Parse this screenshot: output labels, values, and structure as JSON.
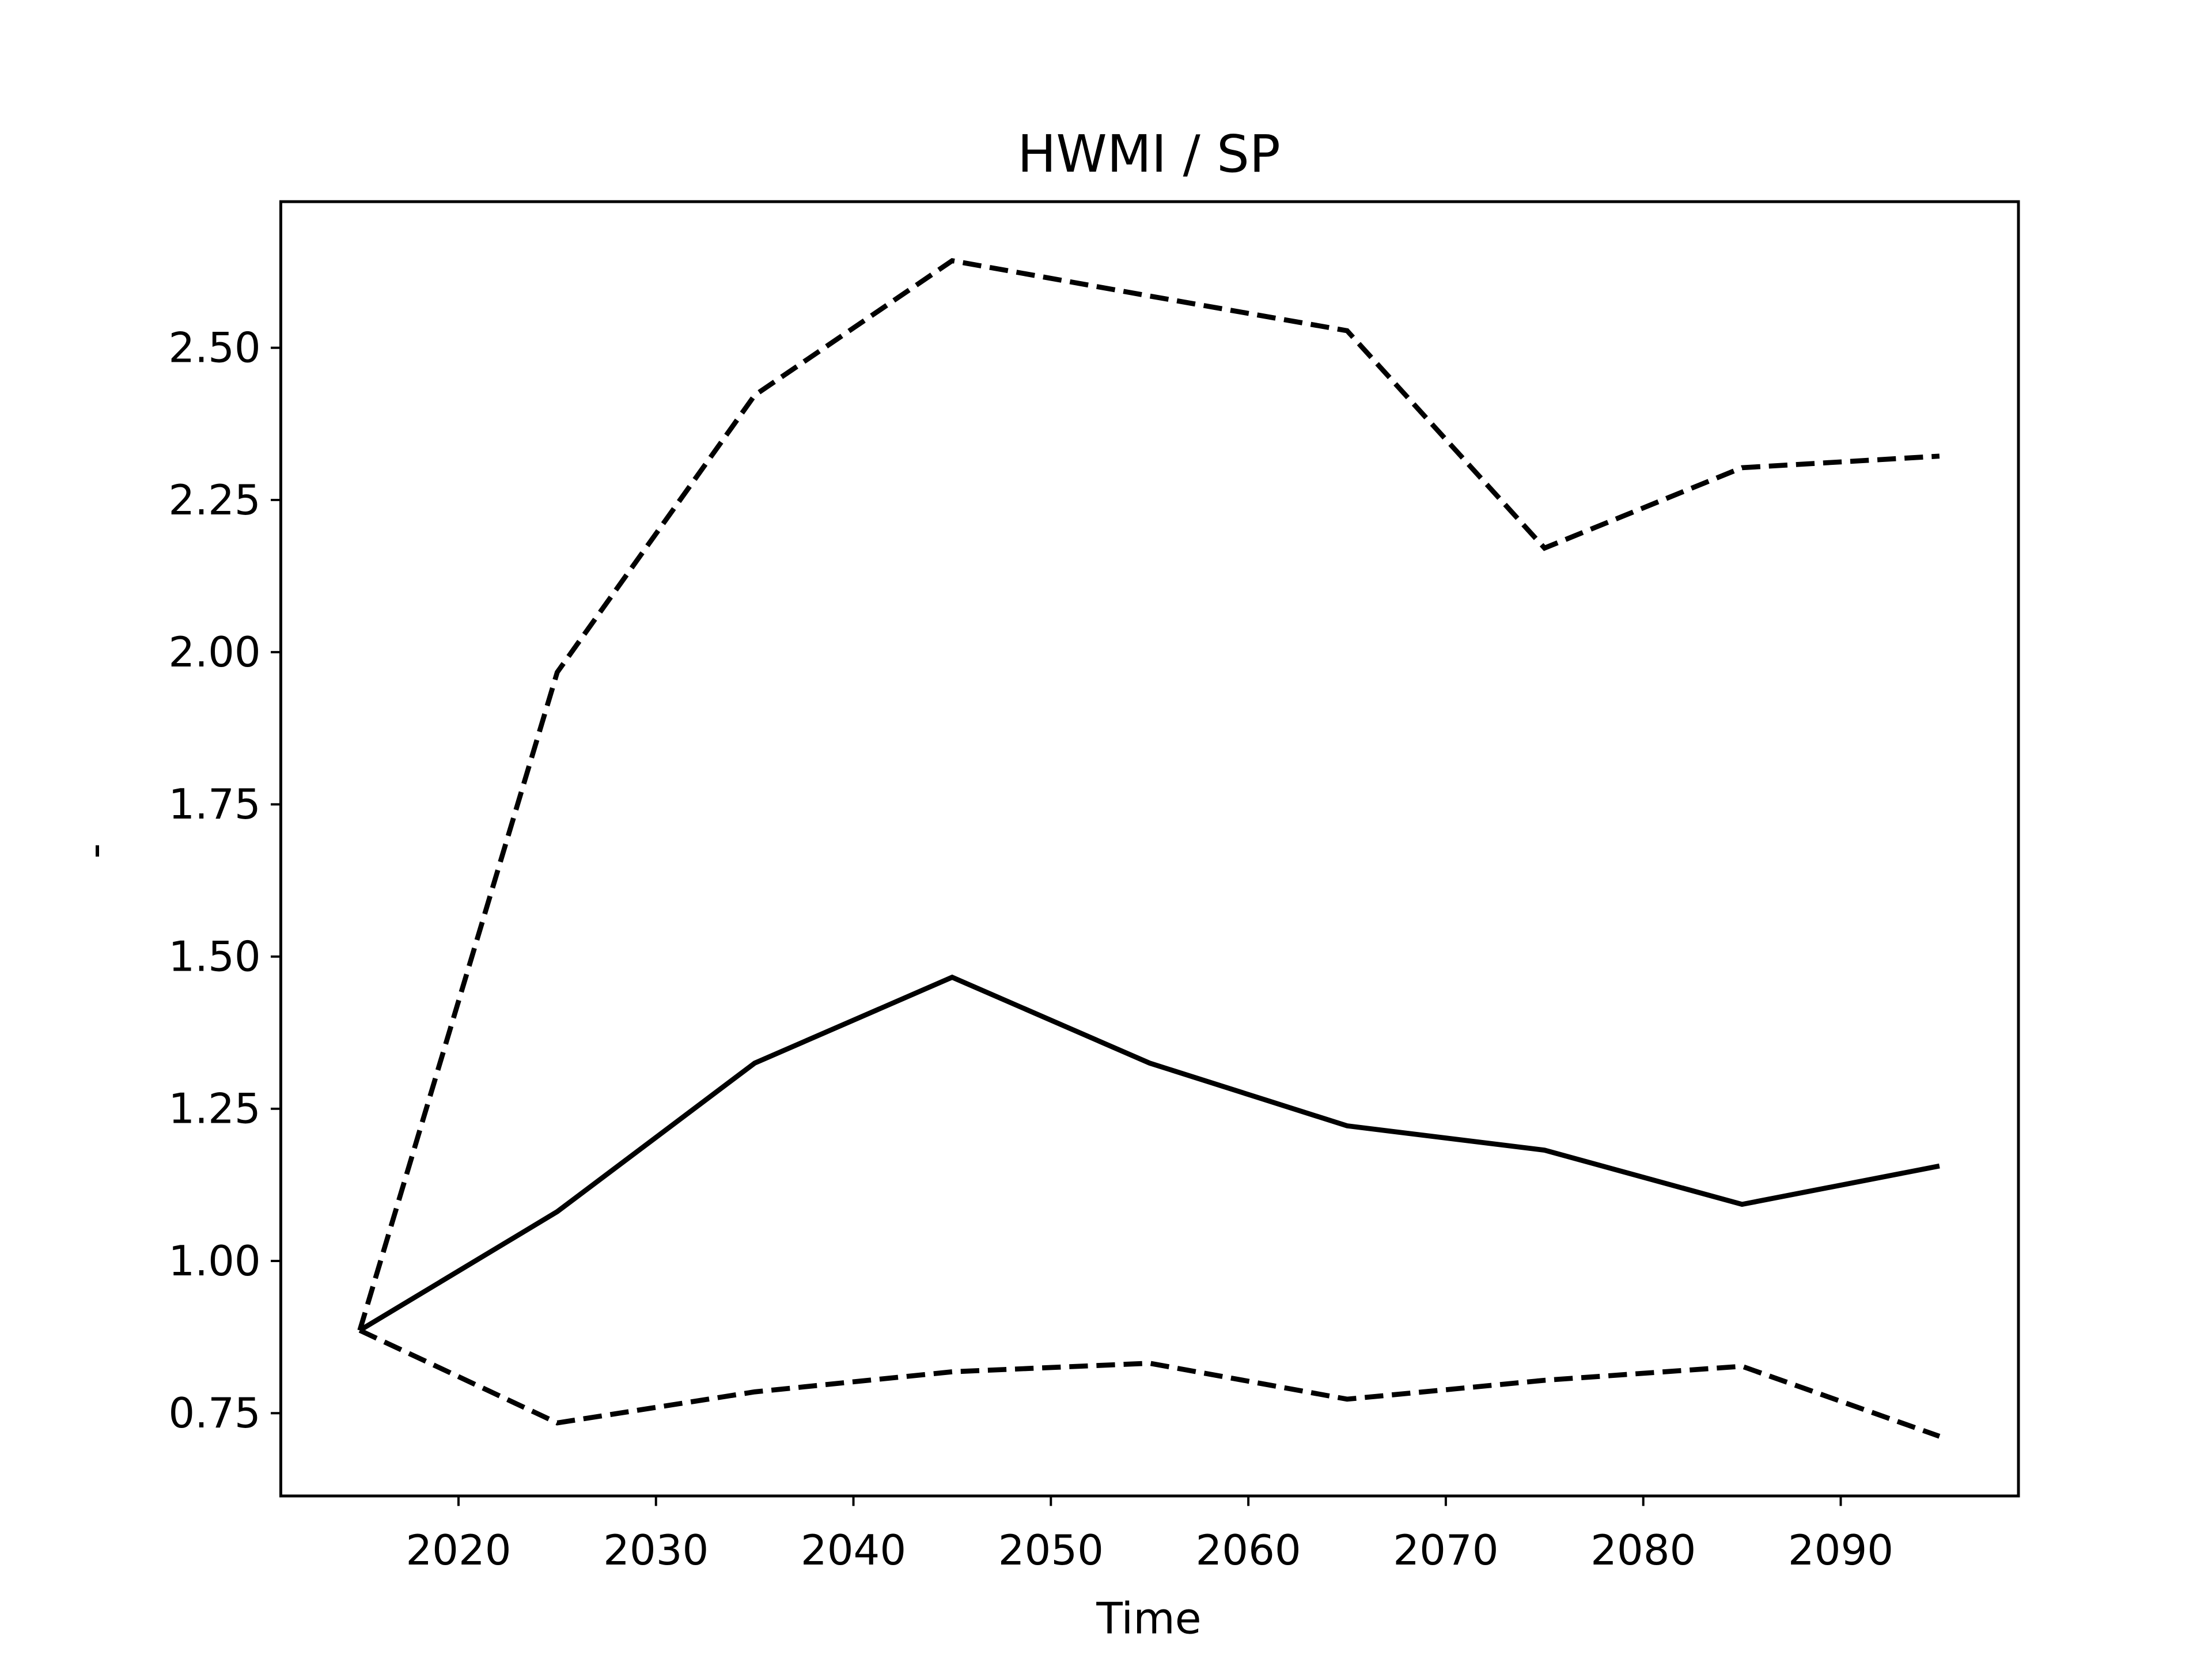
{
  "chart_data": {
    "type": "line",
    "title": "HWMI / SP",
    "x_label": "Time",
    "y_label": "-",
    "x": [
      2015,
      2025,
      2035,
      2045,
      2055,
      2065,
      2075,
      2085,
      2095
    ],
    "series": [
      {
        "color": "#000000",
        "style": "solid",
        "values": [
          0.886,
          1.081,
          1.325,
          1.466,
          1.325,
          1.222,
          1.182,
          1.093,
          1.156
        ]
      },
      {
        "color": "#000000",
        "style": "dashed",
        "values": [
          0.886,
          1.967,
          2.422,
          2.643,
          2.585,
          2.528,
          2.171,
          2.303,
          2.322
        ]
      },
      {
        "color": "#000000",
        "style": "dashed",
        "values": [
          0.886,
          0.734,
          0.785,
          0.818,
          0.832,
          0.773,
          0.804,
          0.827,
          0.712
        ]
      }
    ],
    "xlim": [
      2011,
      2099
    ],
    "xticks": [
      2020,
      2030,
      2040,
      2050,
      2060,
      2070,
      2080,
      2090
    ],
    "ylim": [
      0.614,
      2.74
    ],
    "yticks": [
      0.75,
      {
        "value": 1.0,
        "label": "1.00"
      },
      1.25,
      {
        "value": 1.5,
        "label": "1.50"
      },
      1.75,
      {
        "value": 2.0,
        "label": "2.00"
      },
      2.25,
      {
        "value": 2.5,
        "label": "2.50"
      }
    ],
    "grid": false
  }
}
